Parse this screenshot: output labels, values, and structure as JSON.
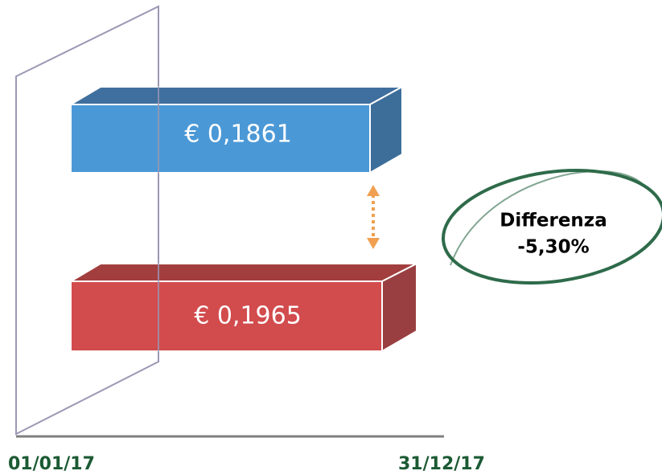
{
  "bars": [
    {
      "label": "€ 0,1861"
    },
    {
      "label": "€ 0,1965"
    }
  ],
  "annotation": {
    "title": "Differenza",
    "value": "-5,30%"
  },
  "axis": {
    "start": "01/01/17",
    "end": "31/12/17"
  }
}
